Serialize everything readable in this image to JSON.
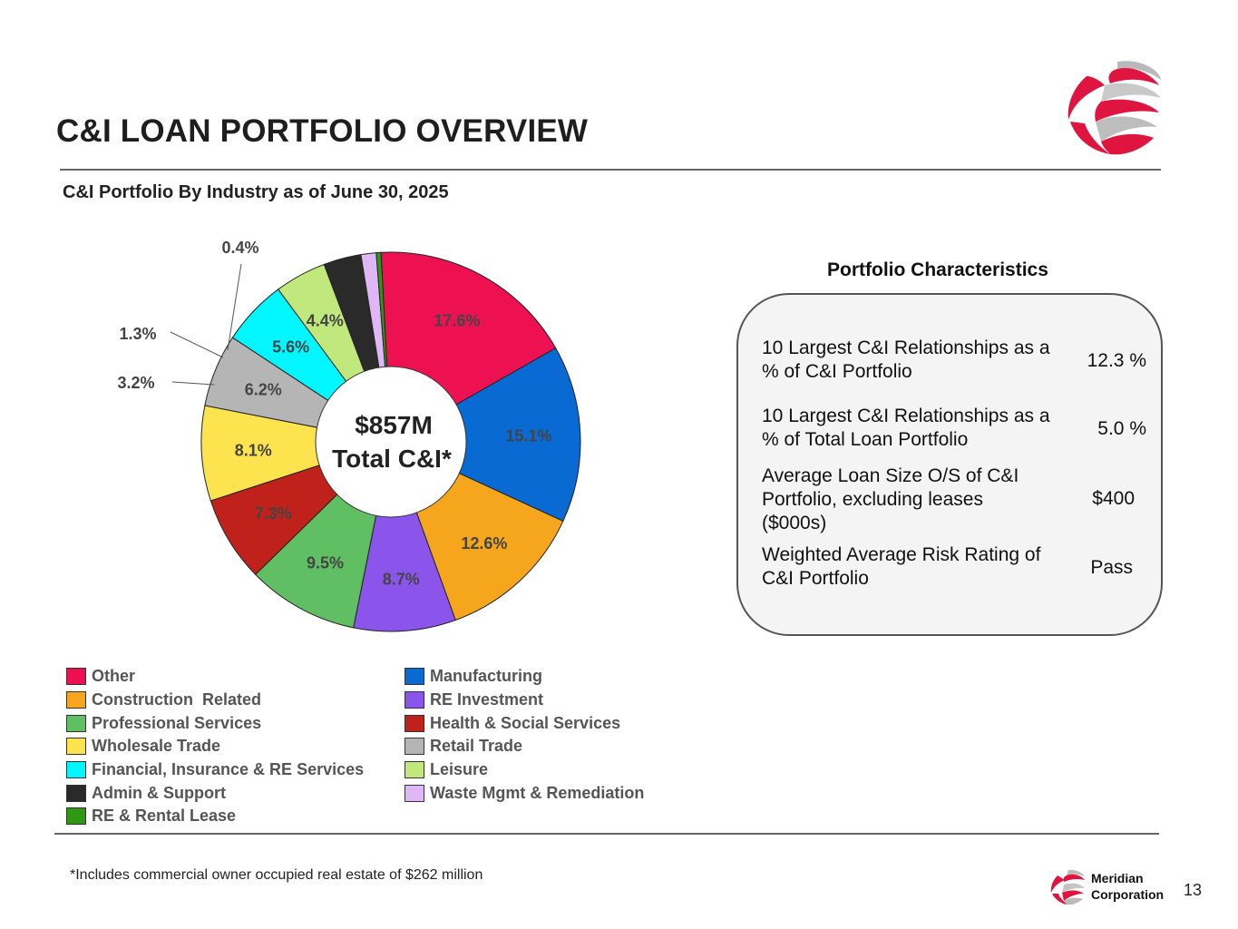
{
  "header": {
    "title": "C&I LOAN PORTFOLIO OVERVIEW",
    "subtitle": "C&I Portfolio By Industry as of June 30, 2025"
  },
  "chart_data": {
    "type": "pie",
    "style": "donut",
    "title": "C&I Portfolio By Industry as of June 30, 2025",
    "center_label": [
      "$857M",
      "Total C&I*"
    ],
    "categories": [
      "Other",
      "Manufacturing",
      "Construction  Related",
      "RE Investment",
      "Professional Services",
      "Health & Social Services",
      "Wholesale Trade",
      "Retail Trade",
      "Financial, Insurance & RE Services",
      "Leisure",
      "Admin & Support",
      "Waste Mgmt & Remediation",
      "RE & Rental Lease"
    ],
    "values": [
      17.6,
      15.1,
      12.6,
      8.7,
      9.5,
      7.3,
      8.1,
      6.2,
      5.6,
      4.4,
      3.2,
      1.3,
      0.4
    ],
    "labels": [
      "17.6%",
      "15.1%",
      "12.6%",
      "8.7%",
      "9.5%",
      "7.3%",
      "8.1%",
      "6.2%",
      "5.6%",
      "4.4%",
      "3.2%",
      "1.3%",
      "0.4%"
    ],
    "colors": [
      "#ee1152",
      "#0a6ad4",
      "#f6a61c",
      "#8b55ec",
      "#5fbf62",
      "#c0221b",
      "#fde44f",
      "#b5b5b5",
      "#00f7ff",
      "#c1e87d",
      "#2a2a2a",
      "#dfb7f7",
      "#2e9812"
    ],
    "legend_position": "bottom"
  },
  "legend": {
    "left": [
      {
        "label": "Other",
        "color": "#ee1152"
      },
      {
        "label": "Construction  Related",
        "color": "#f6a61c"
      },
      {
        "label": "Professional Services",
        "color": "#5fbf62"
      },
      {
        "label": "Wholesale Trade",
        "color": "#fde44f"
      },
      {
        "label": "Financial, Insurance & RE Services",
        "color": "#00f7ff"
      },
      {
        "label": "Admin & Support",
        "color": "#2a2a2a"
      },
      {
        "label": "RE & Rental Lease",
        "color": "#2e9812"
      }
    ],
    "right": [
      {
        "label": "Manufacturing",
        "color": "#0a6ad4"
      },
      {
        "label": "RE Investment",
        "color": "#8b55ec"
      },
      {
        "label": "Health & Social Services",
        "color": "#c0221b"
      },
      {
        "label": "Retail Trade",
        "color": "#b5b5b5"
      },
      {
        "label": "Leisure",
        "color": "#c1e87d"
      },
      {
        "label": "Waste Mgmt & Remediation",
        "color": "#dfb7f7"
      }
    ]
  },
  "portfolio": {
    "title": "Portfolio Characteristics",
    "rows": [
      {
        "label": "10 Largest C&I Relationships as a % of C&I Portfolio",
        "value": "12.3 %"
      },
      {
        "label": "10 Largest C&I Relationships as a % of Total Loan Portfolio",
        "value": "5.0 %"
      },
      {
        "label": "Average Loan Size O/S of C&I Portfolio, excluding leases ($000s)",
        "value": "$400"
      },
      {
        "label": "Weighted Average Risk Rating of C&I Portfolio",
        "value": "Pass"
      }
    ]
  },
  "footer": {
    "footnote": "*Includes commercial owner occupied real estate of $262 million",
    "brand_line1": "Meridian",
    "brand_line2": "Corporation",
    "page_number": "13"
  },
  "colors": {
    "brand_red": "#e0153f",
    "rule": "#666666"
  },
  "icons": {
    "logo": "meridian-sphere-logo"
  }
}
